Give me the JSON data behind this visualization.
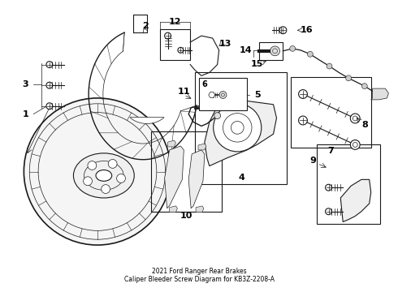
{
  "title": "2021 Ford Ranger Rear Brakes\nCaliper Bleeder Screw Diagram for KB3Z-2208-A",
  "bg_color": "#ffffff",
  "line_color": "#1a1a1a",
  "text_color": "#000000",
  "fig_width": 4.9,
  "fig_height": 3.6,
  "dpi": 100
}
